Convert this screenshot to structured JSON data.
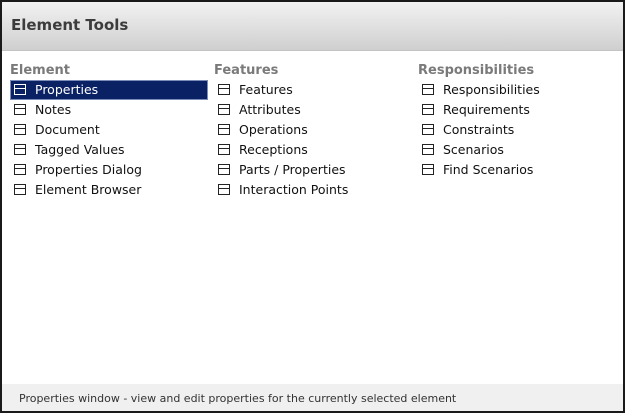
{
  "window": {
    "title": "Element Tools"
  },
  "columns": [
    {
      "heading": "Element",
      "items": [
        "Properties",
        "Notes",
        "Document",
        "Tagged Values",
        "Properties Dialog",
        "Element Browser"
      ]
    },
    {
      "heading": "Features",
      "items": [
        "Features",
        "Attributes",
        "Operations",
        "Receptions",
        "Parts / Properties",
        "Interaction Points"
      ]
    },
    {
      "heading": "Responsibilities",
      "items": [
        "Responsibilities",
        "Requirements",
        "Constraints",
        "Scenarios",
        "Find Scenarios"
      ]
    }
  ],
  "selected": "Properties",
  "status": {
    "text": "Properties window - view and edit properties for the currently selected element"
  },
  "colors": {
    "selection": "#0a2164",
    "heading": "#7a7a7a"
  },
  "icons": {
    "item": "window-panel-icon"
  }
}
